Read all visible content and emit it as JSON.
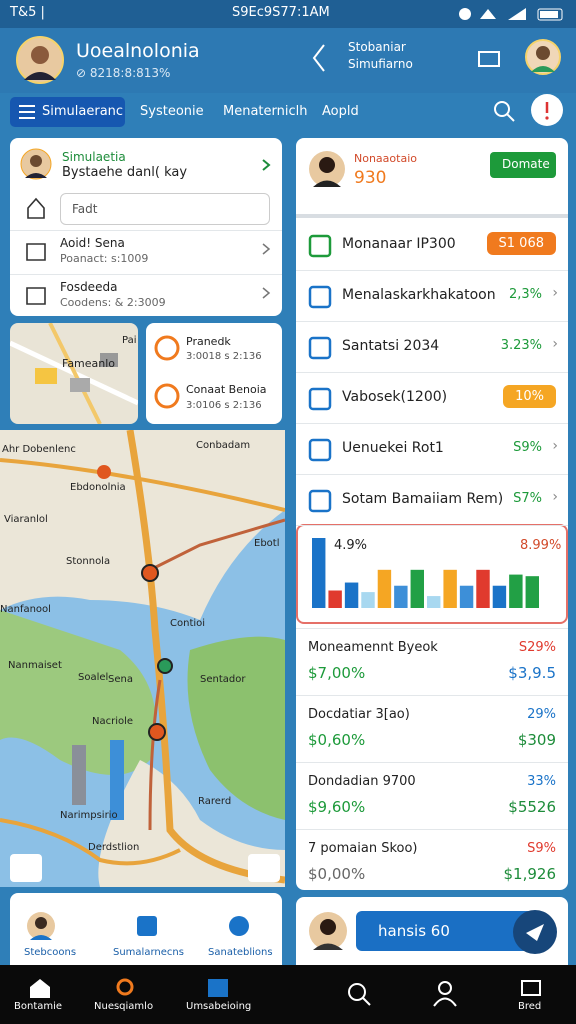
{
  "status": {
    "left": "T&5 |",
    "time": "S9Ec9S77:1AM"
  },
  "header": {
    "title": "Uoealnolonia",
    "subtitle": "⊘ 8218:8:813%",
    "center_title": "Stobaniar",
    "center_subtitle": "Simufiarno"
  },
  "tabs": [
    "Simulaeranc",
    "Systeonie",
    "Menaterniclh",
    "Aopld"
  ],
  "profile_card": {
    "name": "Simulaetia",
    "text": "Bystaehe danl( kay",
    "input": "Fadt",
    "rows": [
      {
        "title": "Aoid! Sena",
        "sub": "Poanact: s:1009"
      },
      {
        "title": "Fosdeeda",
        "sub": "Coodens: & 2:3009"
      }
    ]
  },
  "mini_card": [
    {
      "title": "Pranedk",
      "sub": "3:0018 s 2:136"
    },
    {
      "title": "Conaat Benoia",
      "sub": "3:0106 s 2:136"
    }
  ],
  "small_map": {
    "labels": [
      "Fameanlo",
      "Pai"
    ]
  },
  "map": {
    "labels": [
      "Ahr Dobenlenc",
      "Conbadam",
      "Ebdonolnia",
      "Viaranlol",
      "Stonnola",
      "Ebotl",
      "Nanfanool",
      "Soalel",
      "Contioi",
      "Nanmaiset",
      "Sena",
      "Sentador",
      "Nacriole",
      "Narimpsirio",
      "Rarerd",
      "Derdstlion"
    ]
  },
  "left_bottom": [
    "Stebcoons",
    "Sumalarnecns",
    "Sanateblions"
  ],
  "right_profile": {
    "name": "Nonaaotaio",
    "value": "930",
    "button": "Domate"
  },
  "list": [
    {
      "label": "Monanaar IP300",
      "value": "S1 068",
      "badge": "#f07a1e"
    },
    {
      "label": "Menalaskarkhakatoon",
      "value": "2,3%"
    },
    {
      "label": "Santatsi 2034",
      "value": "3.23%"
    },
    {
      "label": "Vabosek(1200)",
      "value": "10%",
      "badge": "#f5a623"
    },
    {
      "label": "Uenuekei Rot1",
      "value": "S9%"
    },
    {
      "label": "Sotam Bamaiiam Rem)",
      "value": "S7%"
    }
  ],
  "chart": {
    "type": "bar",
    "label_left": "4.9%",
    "label_right": "8.99%",
    "values": [
      88,
      22,
      32,
      20,
      48,
      28,
      48,
      15,
      48,
      28,
      48,
      28,
      42,
      40
    ],
    "colors": [
      "#1a73c8",
      "#e03a2e",
      "#1a73c8",
      "#a8d8f0",
      "#f5a623",
      "#3d8fd8",
      "#22a045",
      "#a8d8f0",
      "#f5a623",
      "#3d8fd8",
      "#e03a2e",
      "#1a73c8",
      "#22a045",
      "#22a045"
    ]
  },
  "stats": [
    {
      "label": "Moneamennt Byeok",
      "pct": "S29%",
      "pct_color": "#e03a2e",
      "v1": "$7,00%",
      "v2": "$3,9.5",
      "v2_color": "#1a73c8"
    },
    {
      "label": "Docdatiar 3[ao)",
      "pct": "29%",
      "pct_color": "#1a73c8",
      "v1": "$0,60%",
      "v2": "$309",
      "v2_color": "#1d8c3a"
    },
    {
      "label": "Dondadian 9700",
      "pct": "33%",
      "pct_color": "#1a73c8",
      "v1": "$9,60%",
      "v2": "$5526",
      "v2_color": "#1d8c3a"
    },
    {
      "label": "7 pomaian Skoo)",
      "pct": "S9%",
      "pct_color": "#e03a2e",
      "v1": "$0,00%",
      "v2": "$1,926",
      "v2_color": "#1d8c3a"
    }
  ],
  "right_bottom": {
    "pill": "hansis 60"
  },
  "nav": [
    "Bontamie",
    "Nuesqiamlo",
    "Umsabeioing",
    "Bred"
  ]
}
